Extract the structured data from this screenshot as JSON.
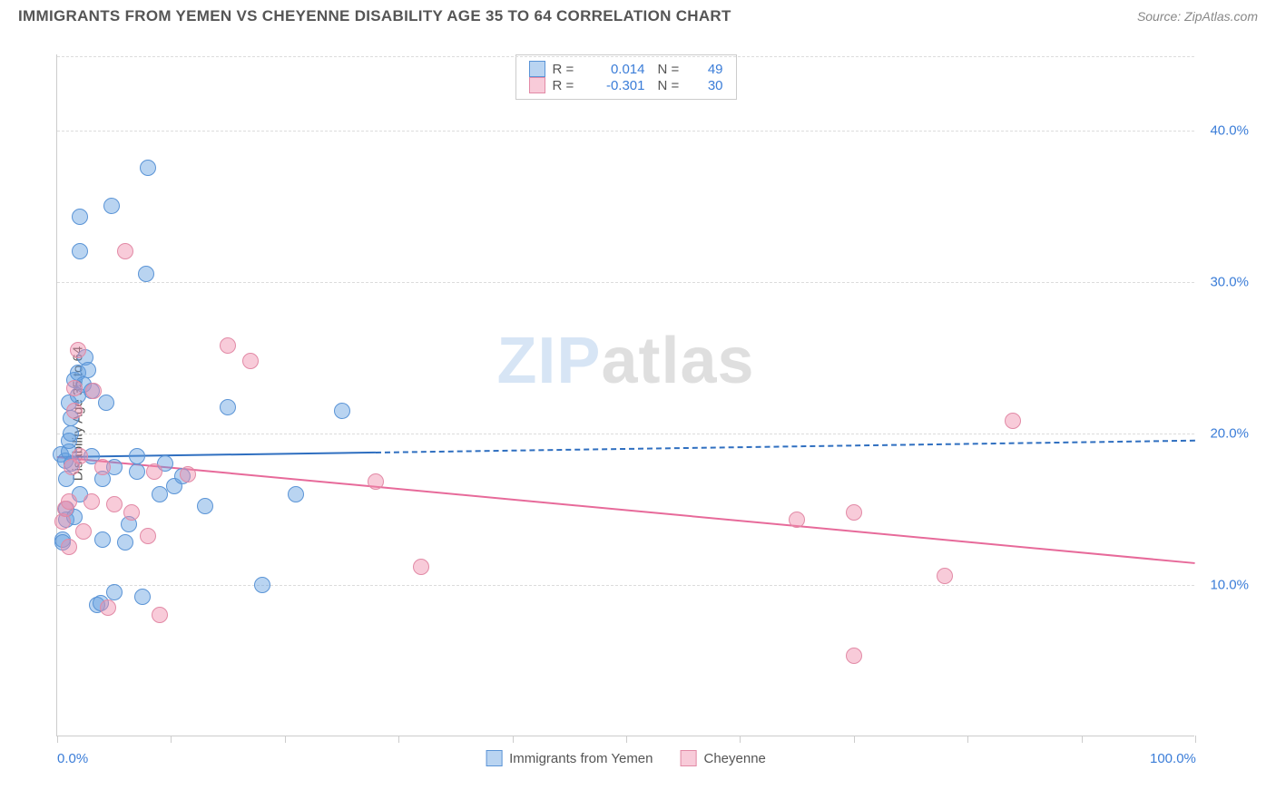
{
  "title": "IMMIGRANTS FROM YEMEN VS CHEYENNE DISABILITY AGE 35 TO 64 CORRELATION CHART",
  "source": "Source: ZipAtlas.com",
  "ylabel": "Disability Age 35 to 64",
  "watermark": {
    "a": "ZIP",
    "b": "atlas"
  },
  "chart": {
    "type": "scatter",
    "background": "#ffffff",
    "grid_color": "#dcdcdc",
    "axis_color": "#cccccc",
    "xlim": [
      0,
      100
    ],
    "ylim": [
      0,
      45
    ],
    "xticks": [
      0,
      10,
      20,
      30,
      40,
      50,
      60,
      70,
      80,
      90,
      100
    ],
    "xtick_labels": {
      "0": "0.0%",
      "100": "100.0%"
    },
    "yticks": [
      10,
      20,
      30,
      40
    ],
    "ytick_labels": {
      "10": "10.0%",
      "20": "20.0%",
      "30": "30.0%",
      "40": "40.0%"
    },
    "point_radius": 9,
    "point_border": 1.5,
    "series": [
      {
        "id": "yemen",
        "label": "Immigrants from Yemen",
        "fill": "rgba(100,160,225,0.45)",
        "stroke": "#5a94d6",
        "trend_color": "#2f6fc0",
        "r": "0.014",
        "n": "49",
        "trend": {
          "x1": 0,
          "y1": 18.5,
          "x2": 100,
          "y2": 19.6,
          "solid_until": 28
        },
        "points": [
          [
            0.3,
            18.6
          ],
          [
            0.5,
            13.0
          ],
          [
            0.5,
            12.8
          ],
          [
            0.7,
            18.2
          ],
          [
            0.8,
            14.3
          ],
          [
            0.8,
            15.0
          ],
          [
            1.0,
            18.8
          ],
          [
            1.0,
            22.0
          ],
          [
            1.0,
            19.5
          ],
          [
            1.2,
            21.0
          ],
          [
            1.2,
            20.0
          ],
          [
            1.3,
            18.0
          ],
          [
            1.5,
            23.5
          ],
          [
            1.8,
            24.0
          ],
          [
            1.8,
            22.5
          ],
          [
            2.0,
            34.3
          ],
          [
            2.0,
            32.0
          ],
          [
            2.3,
            23.2
          ],
          [
            2.5,
            25.0
          ],
          [
            2.7,
            24.2
          ],
          [
            3.0,
            22.8
          ],
          [
            3.5,
            8.7
          ],
          [
            3.8,
            8.8
          ],
          [
            4.0,
            13.0
          ],
          [
            4.0,
            17.0
          ],
          [
            4.3,
            22.0
          ],
          [
            4.8,
            35.0
          ],
          [
            5.0,
            17.8
          ],
          [
            5.0,
            9.5
          ],
          [
            6.0,
            12.8
          ],
          [
            6.3,
            14.0
          ],
          [
            7.0,
            18.5
          ],
          [
            7.0,
            17.5
          ],
          [
            7.5,
            9.2
          ],
          [
            7.8,
            30.5
          ],
          [
            8.0,
            37.5
          ],
          [
            9.0,
            16.0
          ],
          [
            9.5,
            18.0
          ],
          [
            10.3,
            16.5
          ],
          [
            11.0,
            17.2
          ],
          [
            13.0,
            15.2
          ],
          [
            15.0,
            21.7
          ],
          [
            18.0,
            10.0
          ],
          [
            21.0,
            16.0
          ],
          [
            25.0,
            21.5
          ],
          [
            0.8,
            17.0
          ],
          [
            1.5,
            14.5
          ],
          [
            2.0,
            16.0
          ],
          [
            3.0,
            18.5
          ]
        ]
      },
      {
        "id": "cheyenne",
        "label": "Cheyenne",
        "fill": "rgba(240,140,170,0.45)",
        "stroke": "#e28aa6",
        "trend_color": "#e76a9a",
        "r": "-0.301",
        "n": "30",
        "trend": {
          "x1": 0,
          "y1": 18.5,
          "x2": 100,
          "y2": 11.5,
          "solid_until": 100
        },
        "points": [
          [
            0.5,
            14.2
          ],
          [
            0.7,
            15.0
          ],
          [
            1.0,
            15.5
          ],
          [
            1.0,
            12.5
          ],
          [
            1.3,
            17.8
          ],
          [
            1.5,
            21.5
          ],
          [
            1.5,
            23.0
          ],
          [
            1.8,
            25.5
          ],
          [
            2.0,
            18.5
          ],
          [
            2.3,
            13.5
          ],
          [
            3.0,
            15.5
          ],
          [
            3.2,
            22.8
          ],
          [
            4.0,
            17.8
          ],
          [
            4.5,
            8.5
          ],
          [
            5.0,
            15.3
          ],
          [
            6.0,
            32.0
          ],
          [
            6.5,
            14.8
          ],
          [
            8.0,
            13.2
          ],
          [
            8.5,
            17.5
          ],
          [
            9.0,
            8.0
          ],
          [
            11.5,
            17.3
          ],
          [
            15.0,
            25.8
          ],
          [
            17.0,
            24.8
          ],
          [
            28.0,
            16.8
          ],
          [
            32.0,
            11.2
          ],
          [
            65.0,
            14.3
          ],
          [
            70.0,
            14.8
          ],
          [
            70.0,
            5.3
          ],
          [
            78.0,
            10.6
          ],
          [
            84.0,
            20.8
          ]
        ]
      }
    ]
  },
  "legend_top": {
    "rlabel": "R =",
    "nlabel": "N ="
  }
}
